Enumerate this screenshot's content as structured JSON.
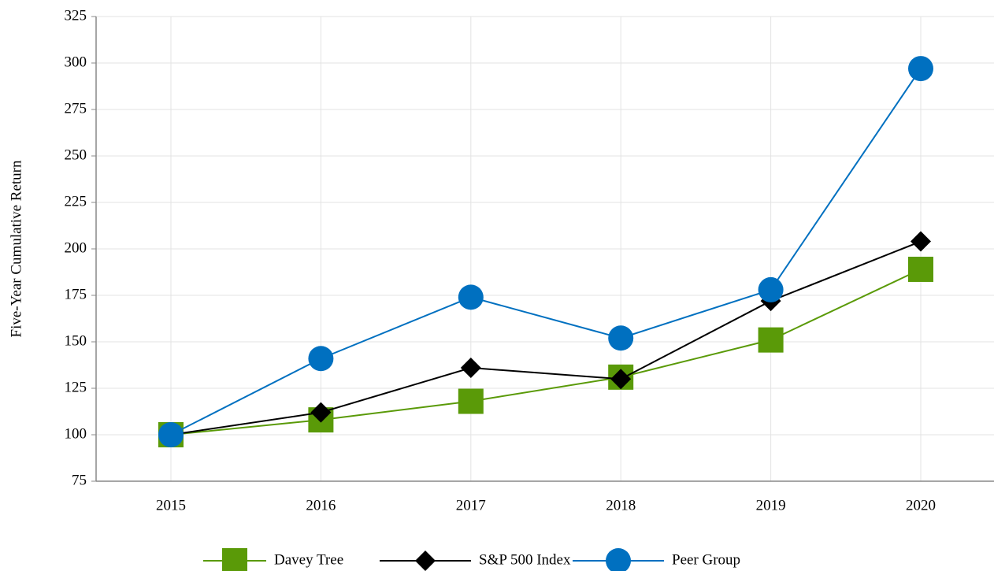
{
  "chart_data": {
    "type": "line",
    "y_label": "Five-Year Cumulative Return",
    "categories": [
      "2015",
      "2016",
      "2017",
      "2018",
      "2019",
      "2020"
    ],
    "series": [
      {
        "name": "Davey Tree",
        "color": "#5a9a08",
        "marker": "square",
        "values": [
          100,
          108,
          118,
          131,
          151,
          189
        ]
      },
      {
        "name": "S&P 500 Index",
        "color": "#000000",
        "marker": "diamond",
        "values": [
          100,
          112,
          136,
          130,
          172,
          204
        ]
      },
      {
        "name": "Peer Group",
        "color": "#0070c0",
        "marker": "circle",
        "values": [
          100,
          141,
          174,
          152,
          178,
          297
        ]
      }
    ],
    "ylim": [
      75,
      325
    ],
    "yticks": [
      75,
      100,
      125,
      150,
      175,
      200,
      225,
      250,
      275,
      300,
      325
    ],
    "grid": true,
    "legend": "bottom"
  }
}
